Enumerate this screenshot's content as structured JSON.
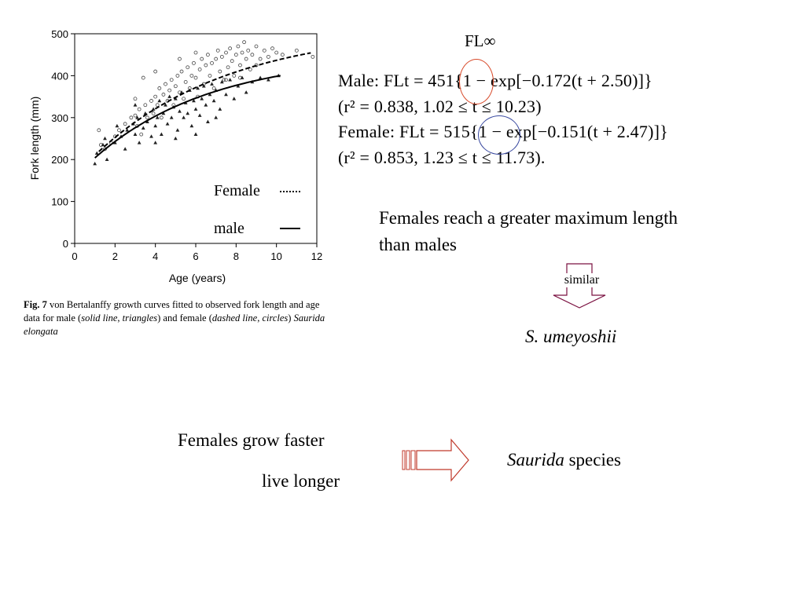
{
  "chart_data": {
    "type": "scatter",
    "xlabel": "Age (years)",
    "ylabel": "Fork length (mm)",
    "xlim": [
      0,
      12
    ],
    "ylim": [
      0,
      500
    ],
    "x_ticks": [
      "0",
      "2",
      "4",
      "6",
      "8",
      "10",
      "12"
    ],
    "y_ticks": [
      "0",
      "100",
      "200",
      "300",
      "400",
      "500"
    ],
    "grid": false,
    "legend_placement": "bottom-right",
    "series": [
      {
        "name": "Female",
        "marker": "circle",
        "line": "dashed",
        "vbgf": {
          "Linf": 515,
          "k": 0.151,
          "t0": -2.47
        },
        "curve_range": [
          1.2,
          11.7
        ],
        "points": [
          [
            1.2,
            270
          ],
          [
            1.3,
            235
          ],
          [
            1.5,
            225
          ],
          [
            1.8,
            240
          ],
          [
            2.0,
            255
          ],
          [
            2.2,
            270
          ],
          [
            2.5,
            285
          ],
          [
            2.8,
            300
          ],
          [
            3.0,
            305
          ],
          [
            3.1,
            280
          ],
          [
            3.2,
            320
          ],
          [
            3.3,
            260
          ],
          [
            3.5,
            330
          ],
          [
            3.6,
            300
          ],
          [
            3.8,
            340
          ],
          [
            3.9,
            310
          ],
          [
            4.0,
            350
          ],
          [
            4.1,
            330
          ],
          [
            4.2,
            370
          ],
          [
            4.3,
            300
          ],
          [
            4.4,
            355
          ],
          [
            4.5,
            380
          ],
          [
            4.6,
            340
          ],
          [
            4.7,
            365
          ],
          [
            4.8,
            390
          ],
          [
            4.9,
            330
          ],
          [
            5.0,
            375
          ],
          [
            5.1,
            400
          ],
          [
            5.2,
            360
          ],
          [
            5.3,
            410
          ],
          [
            5.4,
            345
          ],
          [
            5.5,
            385
          ],
          [
            5.6,
            420
          ],
          [
            5.7,
            370
          ],
          [
            5.8,
            400
          ],
          [
            5.9,
            430
          ],
          [
            6.0,
            395
          ],
          [
            6.1,
            350
          ],
          [
            6.2,
            415
          ],
          [
            6.3,
            440
          ],
          [
            6.4,
            380
          ],
          [
            6.5,
            425
          ],
          [
            6.6,
            450
          ],
          [
            6.7,
            400
          ],
          [
            6.8,
            430
          ],
          [
            6.9,
            370
          ],
          [
            7.0,
            440
          ],
          [
            7.1,
            460
          ],
          [
            7.2,
            410
          ],
          [
            7.3,
            445
          ],
          [
            7.4,
            390
          ],
          [
            7.5,
            455
          ],
          [
            7.6,
            420
          ],
          [
            7.7,
            465
          ],
          [
            7.8,
            435
          ],
          [
            7.9,
            400
          ],
          [
            8.0,
            450
          ],
          [
            8.1,
            470
          ],
          [
            8.2,
            425
          ],
          [
            8.3,
            455
          ],
          [
            8.4,
            480
          ],
          [
            8.5,
            440
          ],
          [
            8.6,
            460
          ],
          [
            8.7,
            415
          ],
          [
            8.8,
            450
          ],
          [
            9.0,
            470
          ],
          [
            9.2,
            440
          ],
          [
            9.4,
            460
          ],
          [
            9.6,
            445
          ],
          [
            9.8,
            465
          ],
          [
            10.0,
            455
          ],
          [
            10.3,
            450
          ],
          [
            11.0,
            460
          ],
          [
            11.8,
            445
          ],
          [
            3.4,
            395
          ],
          [
            4.0,
            410
          ],
          [
            3.0,
            345
          ],
          [
            5.2,
            440
          ],
          [
            6.0,
            455
          ],
          [
            7.5,
            390
          ],
          [
            8.2,
            395
          ],
          [
            9.0,
            425
          ]
        ]
      },
      {
        "name": "male",
        "marker": "triangle",
        "line": "solid",
        "vbgf": {
          "Linf": 451,
          "k": 0.172,
          "t0": -2.5
        },
        "curve_range": [
          1.0,
          10.2
        ],
        "points": [
          [
            1.0,
            190
          ],
          [
            1.1,
            215
          ],
          [
            1.4,
            235
          ],
          [
            1.6,
            200
          ],
          [
            2.0,
            240
          ],
          [
            2.1,
            280
          ],
          [
            2.3,
            255
          ],
          [
            2.6,
            270
          ],
          [
            2.9,
            285
          ],
          [
            3.0,
            260
          ],
          [
            3.1,
            300
          ],
          [
            3.2,
            240
          ],
          [
            3.4,
            275
          ],
          [
            3.5,
            310
          ],
          [
            3.6,
            290
          ],
          [
            3.8,
            255
          ],
          [
            3.9,
            320
          ],
          [
            4.0,
            280
          ],
          [
            4.1,
            300
          ],
          [
            4.2,
            340
          ],
          [
            4.3,
            260
          ],
          [
            4.4,
            310
          ],
          [
            4.5,
            330
          ],
          [
            4.6,
            285
          ],
          [
            4.7,
            350
          ],
          [
            4.8,
            300
          ],
          [
            4.9,
            325
          ],
          [
            5.0,
            345
          ],
          [
            5.1,
            270
          ],
          [
            5.2,
            315
          ],
          [
            5.3,
            360
          ],
          [
            5.4,
            300
          ],
          [
            5.5,
            335
          ],
          [
            5.6,
            310
          ],
          [
            5.7,
            365
          ],
          [
            5.8,
            280
          ],
          [
            5.9,
            340
          ],
          [
            6.0,
            320
          ],
          [
            6.1,
            370
          ],
          [
            6.2,
            305
          ],
          [
            6.3,
            345
          ],
          [
            6.4,
            375
          ],
          [
            6.5,
            330
          ],
          [
            6.6,
            290
          ],
          [
            6.7,
            355
          ],
          [
            6.8,
            380
          ],
          [
            6.9,
            340
          ],
          [
            7.0,
            365
          ],
          [
            7.2,
            320
          ],
          [
            7.3,
            385
          ],
          [
            7.5,
            355
          ],
          [
            7.7,
            390
          ],
          [
            7.9,
            345
          ],
          [
            8.1,
            375
          ],
          [
            8.3,
            395
          ],
          [
            8.5,
            360
          ],
          [
            8.8,
            385
          ],
          [
            9.2,
            395
          ],
          [
            9.6,
            390
          ],
          [
            10.1,
            400
          ],
          [
            4.0,
            240
          ],
          [
            5.0,
            250
          ],
          [
            6.0,
            260
          ],
          [
            7.0,
            300
          ],
          [
            3.0,
            330
          ],
          [
            2.5,
            225
          ],
          [
            1.5,
            250
          ]
        ]
      }
    ]
  },
  "figure_caption": {
    "label": "Fig. 7",
    "text_1": " von Bertalanffy growth curves fitted to observed fork length and age data for male (",
    "italic_1": "solid line",
    "text_2": ", ",
    "italic_2": "triangles",
    "text_3": ") and female (",
    "italic_3": "dashed line",
    "text_4": ", ",
    "italic_4": "circles",
    "text_5": ") ",
    "italic_5": "Saurida elongata"
  },
  "legend": {
    "female_label": "Female",
    "male_label": "male"
  },
  "fl_inf_label": "FL∞",
  "equations": {
    "male_1": "Male: FLt = 451{1 − exp[−0.172(t + 2.50)]}",
    "male_2": "(r² = 0.838, 1.02 ≤ t ≤ 10.23)",
    "female_1": "Female: FLt = 515{1 − exp[−0.151(t + 2.47)]}",
    "female_2": "(r² = 0.853, 1.23 ≤ t ≤ 11.73)."
  },
  "annotations": {
    "females_max_line1": "Females reach a greater maximum length",
    "females_max_line2": "than males",
    "similar": "similar",
    "s_umeyoshii": "S. umeyoshii",
    "grow_faster": "Females grow faster",
    "live_longer": "live longer",
    "saurida_italic": "Saurida",
    "species": " species"
  },
  "colors": {
    "red_circle": "#d84a2a",
    "blue_circle": "#3a4aa0",
    "similar_arrow": "#7a1040",
    "block_arrow": "#c0392b"
  }
}
